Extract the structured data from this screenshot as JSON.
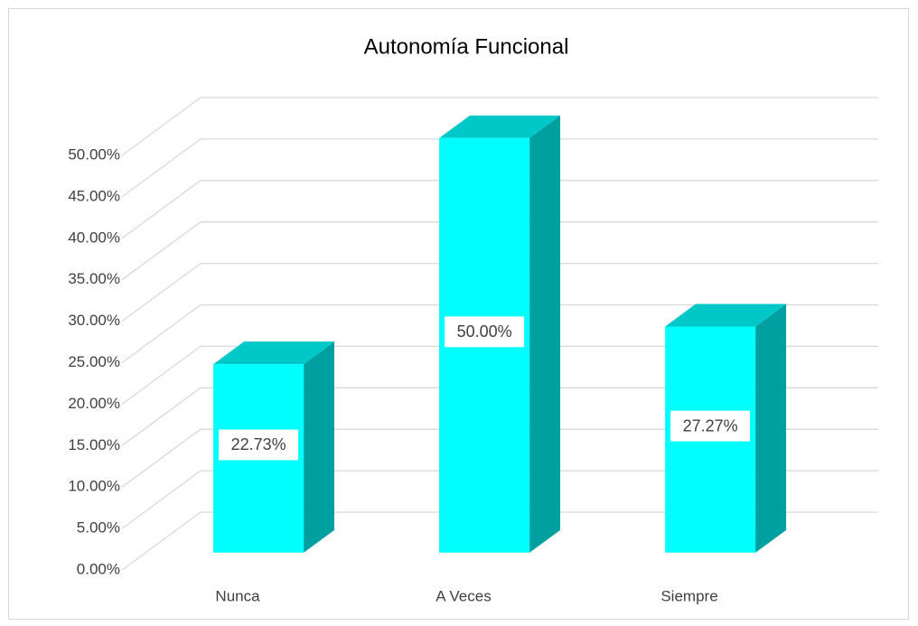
{
  "chart_data": {
    "type": "bar3d",
    "title": "Autonomía Funcional",
    "categories": [
      "Nunca",
      "A Veces",
      "Siempre"
    ],
    "values": [
      22.73,
      50,
      27.27
    ],
    "value_labels": [
      "22.73%",
      "50.00%",
      "27.27%"
    ],
    "color": "#00ffff",
    "ylim": [
      0,
      50
    ],
    "yticks": [
      {
        "value": 0,
        "label": "0.00%"
      },
      {
        "value": 5,
        "label": "5.00%"
      },
      {
        "value": 10,
        "label": "10.00%"
      },
      {
        "value": 15,
        "label": "15.00%"
      },
      {
        "value": 20,
        "label": "20.00%"
      },
      {
        "value": 25,
        "label": "25.00%"
      },
      {
        "value": 30,
        "label": "30.00%"
      },
      {
        "value": 35,
        "label": "35.00%"
      },
      {
        "value": 40,
        "label": "40.00%"
      },
      {
        "value": 45,
        "label": "45.00%"
      },
      {
        "value": 50,
        "label": "50.00%"
      }
    ],
    "grid": true
  }
}
